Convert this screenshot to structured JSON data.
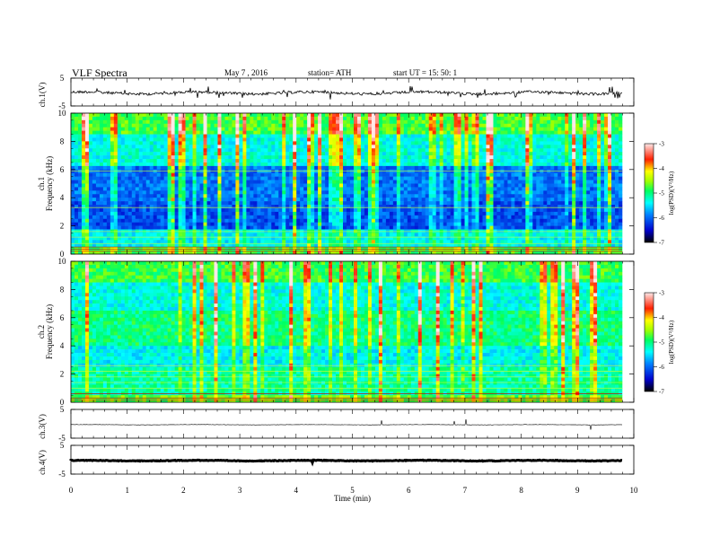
{
  "header": {
    "title": "VLF  Spectra",
    "date": "May 7  , 2016",
    "station": "station= ATH",
    "start": "start  UT  =    15: 50: 1"
  },
  "chart_data": [
    {
      "type": "line",
      "panel": "ch1-waveform",
      "ylabel": "ch.1(V)",
      "yticks": [
        "5",
        "-5"
      ],
      "ylim": [
        -5,
        5
      ],
      "xlim": [
        0,
        10
      ],
      "series": [
        {
          "x": [
            0,
            9.8
          ],
          "y": [
            0,
            0
          ]
        }
      ]
    },
    {
      "type": "heatmap",
      "panel": "ch1-spectrogram",
      "ylabel_channel": "ch.1",
      "ylabel": "Frequency  (kHz)",
      "yticks": [
        "0",
        "2",
        "4",
        "6",
        "8",
        "10"
      ],
      "ylim": [
        0,
        10
      ],
      "xlim": [
        0,
        10
      ],
      "data_end_min": 9.8,
      "colorbar": {
        "label": "log(PSD)(V²/Hz)",
        "ticks": [
          "-3",
          "-4",
          "-5",
          "-6",
          "-7"
        ],
        "range": [
          -7,
          -3
        ],
        "colors": [
          "#000000",
          "#0000ff",
          "#00ffff",
          "#00ff00",
          "#ffff00",
          "#ff0000",
          "#ffffff"
        ]
      }
    },
    {
      "type": "heatmap",
      "panel": "ch2-spectrogram",
      "ylabel_channel": "ch.2",
      "ylabel": "Frequency  (kHz)",
      "yticks": [
        "0",
        "2",
        "4",
        "6",
        "8",
        "10"
      ],
      "ylim": [
        0,
        10
      ],
      "xlim": [
        0,
        10
      ],
      "data_end_min": 9.8,
      "colorbar": {
        "label": "log(PSD)(V²/Hz)",
        "ticks": [
          "-3",
          "-4",
          "-5",
          "-6",
          "-7"
        ],
        "range": [
          -7,
          -3
        ]
      }
    },
    {
      "type": "line",
      "panel": "ch3-waveform",
      "ylabel": "ch.3(V)",
      "yticks": [
        "5",
        "-5"
      ],
      "ylim": [
        -5,
        5
      ],
      "xlim": [
        0,
        10
      ],
      "series": [
        {
          "x": [
            0,
            9.8
          ],
          "y": [
            0,
            0
          ]
        }
      ]
    },
    {
      "type": "line",
      "panel": "ch4-waveform",
      "ylabel": "ch.4(V)",
      "yticks": [
        "5",
        "-5"
      ],
      "ylim": [
        -5,
        5
      ],
      "xlim": [
        0,
        10
      ],
      "series": [
        {
          "x": [
            0,
            9.8
          ],
          "y": [
            0,
            0
          ]
        }
      ],
      "xlabel": "Time  (min)",
      "xticks": [
        "0",
        "1",
        "2",
        "3",
        "4",
        "5",
        "6",
        "7",
        "8",
        "9",
        "10"
      ]
    }
  ]
}
